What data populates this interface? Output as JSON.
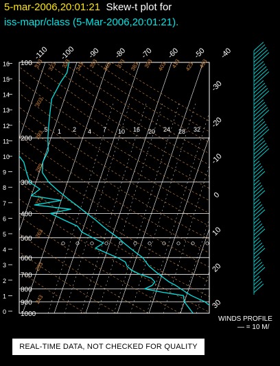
{
  "header": {
    "time_label": "5-mar-2006,20:01:21",
    "plot_title": "Skew-t plot for",
    "subtitle": "iss-mapr/class (5-Mar-2006,20:01:21)."
  },
  "colors": {
    "background": "#000000",
    "trace": "#00e5e5",
    "isotherm_label": "#ffffff",
    "isobar": "#ffffff",
    "dry_adiabat": "#d88a3a",
    "title_time": "#ffe600"
  },
  "chart_data": {
    "type": "line",
    "title": "Skew-t plot for",
    "pressure_levels_hpa": [
      100,
      200,
      300,
      400,
      500,
      600,
      700,
      800,
      900,
      1000
    ],
    "altitude_ticks_km": [
      0,
      1,
      2,
      3,
      4,
      5,
      6,
      7,
      8,
      9,
      10,
      11,
      12,
      13,
      14,
      15,
      16
    ],
    "top_isotherm_labels": [
      "-110",
      "-100",
      "-90",
      "-80",
      "-70",
      "-60",
      "-50",
      "-40"
    ],
    "right_isotherm_labels": [
      "-30",
      "-20",
      "-10",
      "0",
      "10",
      "20",
      "30"
    ],
    "dry_adiabat_labels": [
      "313",
      "323",
      "333",
      "343",
      "353",
      "363",
      "373",
      "383",
      "393",
      "403",
      "413",
      "423",
      "433",
      "303",
      "293",
      "283",
      "273",
      "263",
      "253",
      "243"
    ],
    "mixing_ratio_labels": [
      ".5",
      "1",
      "2",
      "4",
      "7",
      "10",
      "16",
      "20",
      "24",
      "28",
      "32"
    ],
    "pressure_axis": "log",
    "ylim_hpa": [
      1000,
      100
    ],
    "series": [
      {
        "key": "temperature",
        "color": "#00e5e5",
        "points": [
          {
            "p": 1000,
            "t": 13.5
          },
          {
            "p": 975,
            "t": 11.0
          },
          {
            "p": 950,
            "t": 9.5
          },
          {
            "p": 925,
            "t": 8.0
          },
          {
            "p": 900,
            "t": 6.5
          },
          {
            "p": 875,
            "t": 4.0
          },
          {
            "p": 850,
            "t": 1.5
          },
          {
            "p": 825,
            "t": -0.5
          },
          {
            "p": 800,
            "t": -2.5
          },
          {
            "p": 775,
            "t": -4.5
          },
          {
            "p": 750,
            "t": -7.0
          },
          {
            "p": 725,
            "t": -9.0
          },
          {
            "p": 700,
            "t": -11.0
          },
          {
            "p": 675,
            "t": -13.0
          },
          {
            "p": 650,
            "t": -15.0
          },
          {
            "p": 625,
            "t": -16.5
          },
          {
            "p": 600,
            "t": -18.0
          },
          {
            "p": 575,
            "t": -20.5
          },
          {
            "p": 550,
            "t": -23.0
          },
          {
            "p": 525,
            "t": -25.5
          },
          {
            "p": 500,
            "t": -28.0
          },
          {
            "p": 475,
            "t": -31.0
          },
          {
            "p": 450,
            "t": -34.0
          },
          {
            "p": 425,
            "t": -37.0
          },
          {
            "p": 400,
            "t": -40.5
          },
          {
            "p": 375,
            "t": -44.0
          },
          {
            "p": 350,
            "t": -48.0
          },
          {
            "p": 325,
            "t": -52.0
          },
          {
            "p": 300,
            "t": -56.0
          },
          {
            "p": 275,
            "t": -59.0
          },
          {
            "p": 250,
            "t": -60.0
          },
          {
            "p": 225,
            "t": -59.5
          },
          {
            "p": 200,
            "t": -61.0
          },
          {
            "p": 180,
            "t": -62.0
          },
          {
            "p": 160,
            "t": -63.0
          },
          {
            "p": 140,
            "t": -64.0
          },
          {
            "p": 120,
            "t": -63.0
          },
          {
            "p": 110,
            "t": -62.0
          },
          {
            "p": 100,
            "t": -62.5
          }
        ]
      },
      {
        "key": "dewpoint",
        "color": "#00e5e5",
        "points": [
          {
            "p": 1000,
            "t": 4.0
          },
          {
            "p": 975,
            "t": 3.0
          },
          {
            "p": 950,
            "t": 2.0
          },
          {
            "p": 925,
            "t": 1.0
          },
          {
            "p": 900,
            "t": 0.0
          },
          {
            "p": 875,
            "t": -0.5
          },
          {
            "p": 850,
            "t": -1.0
          },
          {
            "p": 825,
            "t": -8.0
          },
          {
            "p": 800,
            "t": -14.0
          },
          {
            "p": 775,
            "t": -12.0
          },
          {
            "p": 750,
            "t": -11.5
          },
          {
            "p": 725,
            "t": -13.0
          },
          {
            "p": 700,
            "t": -17.0
          },
          {
            "p": 675,
            "t": -20.0
          },
          {
            "p": 650,
            "t": -22.0
          },
          {
            "p": 625,
            "t": -23.0
          },
          {
            "p": 600,
            "t": -26.0
          },
          {
            "p": 575,
            "t": -30.0
          },
          {
            "p": 550,
            "t": -34.0
          },
          {
            "p": 525,
            "t": -32.0
          },
          {
            "p": 500,
            "t": -36.0
          },
          {
            "p": 475,
            "t": -40.0
          },
          {
            "p": 450,
            "t": -42.0
          },
          {
            "p": 425,
            "t": -47.0
          },
          {
            "p": 400,
            "t": -52.0
          },
          {
            "p": 385,
            "t": -46.0
          },
          {
            "p": 370,
            "t": -58.0
          },
          {
            "p": 355,
            "t": -50.0
          },
          {
            "p": 340,
            "t": -60.0
          },
          {
            "p": 320,
            "t": -58.0
          },
          {
            "p": 300,
            "t": -62.0
          },
          {
            "p": 275,
            "t": -64.0
          },
          {
            "p": 250,
            "t": -66.0
          },
          {
            "p": 225,
            "t": -70.0
          },
          {
            "p": 200,
            "t": -74.0
          },
          {
            "p": 180,
            "t": -77.0
          },
          {
            "p": 160,
            "t": -82.0
          },
          {
            "p": 140,
            "t": -85.0
          },
          {
            "p": 120,
            "t": -84.0
          },
          {
            "p": 100,
            "t": -80.0
          }
        ]
      }
    ]
  },
  "footer": {
    "note": "REAL-TIME DATA, NOT CHECKED FOR QUALITY",
    "winds_label": "WINDS PROFILE",
    "winds_scale": "— = 10 M/"
  }
}
